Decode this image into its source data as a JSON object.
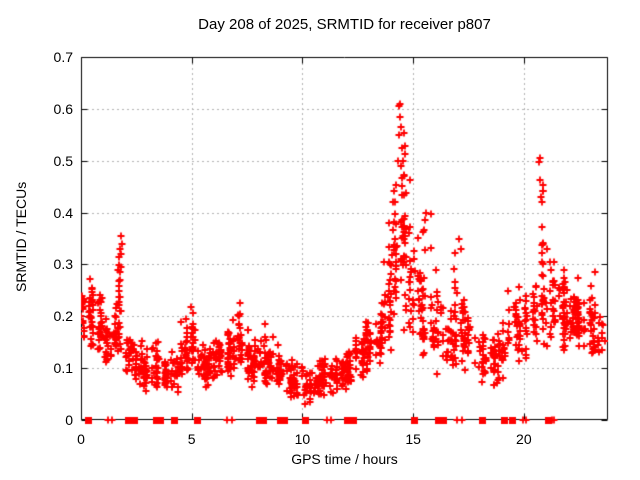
{
  "window": {
    "background": "#ffffff"
  },
  "chart_data": {
    "type": "scatter",
    "title": "Day 208 of 2025, SRMTID for receiver p807",
    "xlabel": "GPS time / hours",
    "ylabel": "SRMTID / TECUs",
    "xlim": [
      0,
      23.8
    ],
    "ylim": [
      0,
      0.7
    ],
    "xticks": [
      0,
      5,
      10,
      15,
      20
    ],
    "xticklabels": [
      "0",
      "5",
      "10",
      "15",
      "20"
    ],
    "yticks": [
      0,
      0.1,
      0.2,
      0.3,
      0.4,
      0.5,
      0.6,
      0.7
    ],
    "yticklabels": [
      "0",
      "0.1",
      "0.2",
      "0.3",
      "0.4",
      "0.5",
      "0.6",
      "0.7"
    ],
    "grid": true,
    "legend": "none",
    "marker": "plus",
    "marker_color": "#ff0000",
    "grid_color": "#b4b4b4",
    "axis_color": "#000000",
    "background_color": "#ffffff",
    "density_bins": [
      [
        0.0,
        0.3,
        18,
        0.14,
        0.22,
        0.26
      ],
      [
        0.3,
        0.7,
        30,
        0.13,
        0.2,
        0.28
      ],
      [
        0.7,
        1.0,
        25,
        0.12,
        0.18,
        0.25
      ],
      [
        1.0,
        1.4,
        25,
        0.09,
        0.14,
        0.22
      ],
      [
        1.4,
        1.7,
        20,
        0.11,
        0.16,
        0.25
      ],
      [
        1.7,
        2.0,
        25,
        0.12,
        0.22,
        0.35
      ],
      [
        2.0,
        2.4,
        25,
        0.08,
        0.13,
        0.18
      ],
      [
        2.4,
        2.8,
        25,
        0.06,
        0.1,
        0.16
      ],
      [
        2.8,
        3.2,
        25,
        0.05,
        0.09,
        0.14
      ],
      [
        3.2,
        3.6,
        25,
        0.06,
        0.1,
        0.16
      ],
      [
        3.6,
        4.0,
        22,
        0.04,
        0.08,
        0.13
      ],
      [
        4.0,
        4.4,
        22,
        0.05,
        0.09,
        0.14
      ],
      [
        4.4,
        4.8,
        25,
        0.07,
        0.12,
        0.21
      ],
      [
        4.8,
        5.2,
        25,
        0.07,
        0.12,
        0.22
      ],
      [
        5.2,
        5.6,
        25,
        0.06,
        0.1,
        0.16
      ],
      [
        5.6,
        6.0,
        25,
        0.05,
        0.09,
        0.15
      ],
      [
        6.0,
        6.4,
        25,
        0.06,
        0.11,
        0.19
      ],
      [
        6.4,
        6.8,
        25,
        0.07,
        0.12,
        0.2
      ],
      [
        6.8,
        7.2,
        25,
        0.08,
        0.13,
        0.25
      ],
      [
        7.2,
        7.6,
        25,
        0.07,
        0.12,
        0.22
      ],
      [
        7.6,
        8.0,
        25,
        0.06,
        0.1,
        0.17
      ],
      [
        8.0,
        8.4,
        25,
        0.06,
        0.1,
        0.2
      ],
      [
        8.4,
        8.8,
        25,
        0.06,
        0.1,
        0.17
      ],
      [
        8.8,
        9.2,
        22,
        0.05,
        0.09,
        0.15
      ],
      [
        9.2,
        9.6,
        22,
        0.035,
        0.08,
        0.13
      ],
      [
        9.6,
        10.0,
        22,
        0.04,
        0.075,
        0.12
      ],
      [
        10.0,
        10.4,
        25,
        0.03,
        0.06,
        0.1
      ],
      [
        10.4,
        10.8,
        25,
        0.035,
        0.07,
        0.11
      ],
      [
        10.8,
        11.2,
        25,
        0.045,
        0.08,
        0.12
      ],
      [
        11.2,
        11.6,
        25,
        0.05,
        0.085,
        0.125
      ],
      [
        11.6,
        12.0,
        25,
        0.06,
        0.09,
        0.13
      ],
      [
        12.0,
        12.4,
        25,
        0.065,
        0.1,
        0.15
      ],
      [
        12.4,
        12.8,
        28,
        0.08,
        0.12,
        0.18
      ],
      [
        12.8,
        13.2,
        30,
        0.09,
        0.14,
        0.22
      ],
      [
        13.2,
        13.6,
        30,
        0.1,
        0.16,
        0.26
      ],
      [
        13.6,
        14.0,
        32,
        0.12,
        0.2,
        0.38
      ],
      [
        14.0,
        14.3,
        25,
        0.15,
        0.3,
        0.5
      ],
      [
        14.3,
        14.6,
        25,
        0.18,
        0.35,
        0.61
      ],
      [
        14.6,
        15.0,
        28,
        0.12,
        0.28,
        0.48
      ],
      [
        15.0,
        15.4,
        25,
        0.1,
        0.22,
        0.38
      ],
      [
        15.4,
        15.9,
        28,
        0.1,
        0.2,
        0.4
      ],
      [
        15.9,
        16.4,
        25,
        0.08,
        0.15,
        0.3
      ],
      [
        16.4,
        16.9,
        25,
        0.08,
        0.13,
        0.22
      ],
      [
        16.9,
        17.3,
        25,
        0.09,
        0.16,
        0.35
      ],
      [
        17.3,
        17.8,
        25,
        0.08,
        0.14,
        0.24
      ],
      [
        17.8,
        18.3,
        25,
        0.07,
        0.12,
        0.19
      ],
      [
        18.3,
        18.8,
        25,
        0.06,
        0.1,
        0.17
      ],
      [
        18.8,
        19.3,
        25,
        0.07,
        0.12,
        0.2
      ],
      [
        19.3,
        19.8,
        25,
        0.09,
        0.16,
        0.3
      ],
      [
        19.8,
        20.3,
        25,
        0.11,
        0.17,
        0.28
      ],
      [
        20.3,
        20.6,
        18,
        0.13,
        0.2,
        0.3
      ],
      [
        20.6,
        20.9,
        20,
        0.15,
        0.26,
        0.51
      ],
      [
        20.9,
        21.4,
        32,
        0.13,
        0.21,
        0.33
      ],
      [
        21.4,
        21.9,
        32,
        0.12,
        0.2,
        0.3
      ],
      [
        21.9,
        22.4,
        32,
        0.13,
        0.2,
        0.28
      ],
      [
        22.4,
        22.9,
        32,
        0.12,
        0.2,
        0.28
      ],
      [
        22.9,
        23.4,
        28,
        0.08,
        0.18,
        0.28
      ],
      [
        23.4,
        23.8,
        12,
        0.08,
        0.14,
        0.27
      ]
    ],
    "notable_points": [
      [
        0.03,
        0.24
      ],
      [
        0.06,
        0.225
      ],
      [
        0.1,
        0.23
      ],
      [
        1.78,
        0.33
      ],
      [
        1.8,
        0.355
      ],
      [
        1.83,
        0.34
      ],
      [
        14.3,
        0.5
      ],
      [
        14.35,
        0.55
      ],
      [
        14.38,
        0.605
      ],
      [
        14.4,
        0.585
      ],
      [
        14.42,
        0.61
      ],
      [
        14.45,
        0.565
      ],
      [
        14.5,
        0.525
      ],
      [
        14.55,
        0.5
      ],
      [
        14.6,
        0.47
      ],
      [
        15.55,
        0.385
      ],
      [
        15.6,
        0.4
      ],
      [
        17.08,
        0.35
      ],
      [
        17.15,
        0.33
      ],
      [
        20.7,
        0.497
      ],
      [
        20.72,
        0.505
      ],
      [
        20.75,
        0.463
      ],
      [
        20.78,
        0.43
      ],
      [
        20.8,
        0.42
      ],
      [
        21.05,
        0.33
      ],
      [
        23.2,
        0.285
      ]
    ],
    "baseline_markers": {
      "square_hours": [
        0.3,
        2.1,
        2.25,
        2.4,
        3.4,
        3.55,
        4.2,
        5.25,
        8.05,
        8.2,
        9.0,
        9.15,
        10.1,
        12.0,
        12.15,
        12.3,
        15.05,
        16.1,
        16.35,
        18.1,
        19.1,
        19.45,
        21.1
      ],
      "plus_hours": [
        1.2,
        1.4,
        6.6,
        6.8,
        11.1,
        11.3,
        17.0,
        17.2,
        19.95,
        20.1,
        21.25,
        21.35
      ]
    }
  }
}
